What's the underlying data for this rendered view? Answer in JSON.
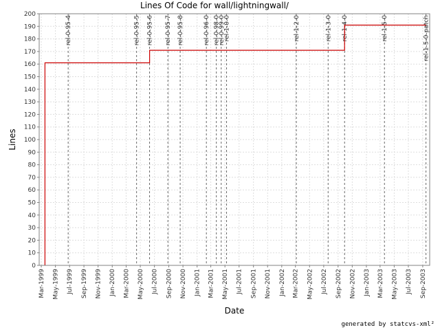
{
  "chart_data": {
    "type": "line",
    "title": "Lines Of Code for wall/lightningwall/",
    "xlabel": "Date",
    "ylabel": "Lines",
    "ylim": [
      0,
      200
    ],
    "y_ticks": [
      0,
      10,
      20,
      30,
      40,
      50,
      60,
      70,
      80,
      90,
      100,
      110,
      120,
      130,
      140,
      150,
      160,
      170,
      180,
      190,
      200
    ],
    "x_tick_labels": [
      "Mar-1999",
      "May-1999",
      "Jul-1999",
      "Sep-1999",
      "Nov-1999",
      "Jan-2000",
      "Mar-2000",
      "May-2000",
      "Jul-2000",
      "Sep-2000",
      "Nov-2000",
      "Jan-2001",
      "Mar-2001",
      "May-2001",
      "Jul-2001",
      "Sep-2001",
      "Nov-2001",
      "Jan-2002",
      "Mar-2002",
      "May-2002",
      "Jul-2002",
      "Sep-2002",
      "Nov-2002",
      "Jan-2003",
      "Mar-2003",
      "May-2003",
      "Jul-2003",
      "Sep-2003"
    ],
    "grid": true,
    "series": [
      {
        "color": "#cc0000",
        "points": [
          {
            "x": "1999-03-17",
            "y": 0
          },
          {
            "x": "1999-03-17",
            "y": 161
          },
          {
            "x": "2000-06-10",
            "y": 161
          },
          {
            "x": "2000-06-10",
            "y": 171
          },
          {
            "x": "2002-09-29",
            "y": 171
          },
          {
            "x": "2002-09-29",
            "y": 191
          },
          {
            "x": "2003-09-15",
            "y": 191
          }
        ]
      }
    ],
    "releases": [
      {
        "date": "1999-06-25",
        "label": "rel-0-95-4"
      },
      {
        "date": "2000-04-15",
        "label": "rel-0-95-5"
      },
      {
        "date": "2000-06-10",
        "label": "rel-0-95-6"
      },
      {
        "date": "2000-08-28",
        "label": "rel-0-95-7"
      },
      {
        "date": "2000-10-20",
        "label": "rel-0-95-8"
      },
      {
        "date": "2001-02-10",
        "label": "rel-0-96-0"
      },
      {
        "date": "2001-03-25",
        "label": "rel-0-98-0"
      },
      {
        "date": "2001-04-15",
        "label": "rel-0-99-0"
      },
      {
        "date": "2001-05-08",
        "label": "rel-1-0-0"
      },
      {
        "date": "2002-03-05",
        "label": "rel-1-2-0"
      },
      {
        "date": "2002-07-20",
        "label": "rel-1-3-0"
      },
      {
        "date": "2002-09-29",
        "label": "rel-1-4-0"
      },
      {
        "date": "2003-03-20",
        "label": "rel-1-5-0"
      },
      {
        "date": "2003-09-15",
        "label": "rel-1-5-0-patch"
      }
    ]
  },
  "footer": "generated by statcvs-xml²",
  "colors": {
    "series": "#cc0000",
    "grid": "#dddddd",
    "release_line": "#666666",
    "axis": "#808080"
  }
}
